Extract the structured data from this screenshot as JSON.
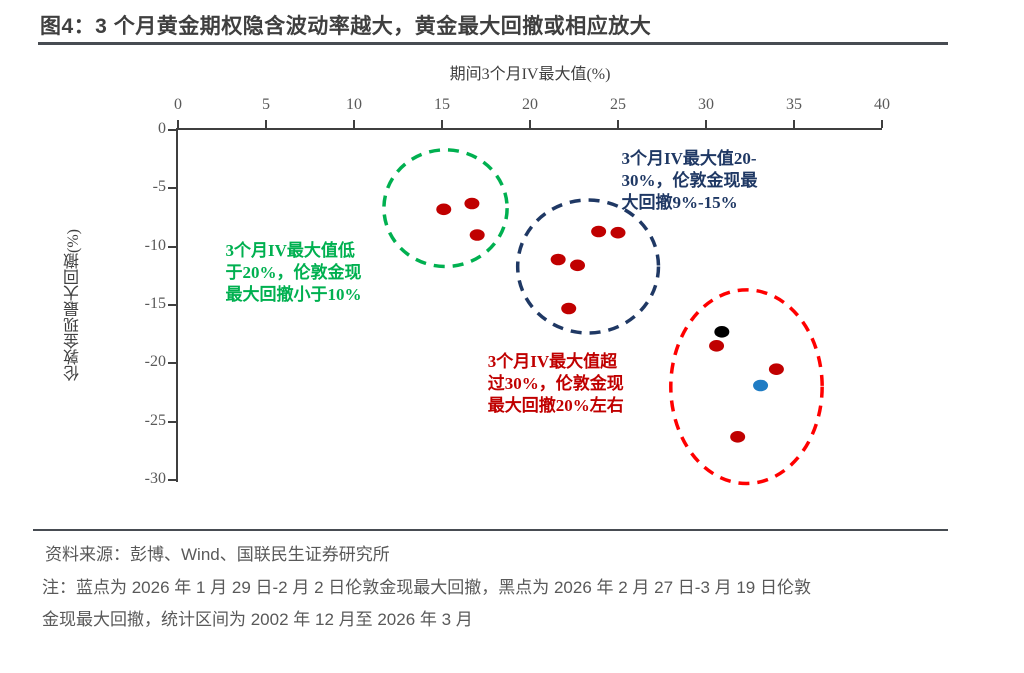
{
  "title": "图4：3 个月黄金期权隐含波动率越大，黄金最大回撤或相应放大",
  "chart_data": {
    "type": "scatter",
    "title": "图4：3 个月黄金期权隐含波动率越大，黄金最大回撤或相应放大",
    "xlabel": "期间3个月IV最大值(%)",
    "ylabel": "伦敦金现最大回撤(%)",
    "xlim": [
      0,
      40
    ],
    "ylim": [
      -30,
      0
    ],
    "x_ticks": [
      0,
      5,
      10,
      15,
      20,
      25,
      30,
      35,
      40
    ],
    "y_ticks": [
      0,
      -5,
      -10,
      -15,
      -20,
      -25,
      -30
    ],
    "grid": false,
    "legend": "none",
    "series": [
      {
        "name": "历史区间红点",
        "color": "#c00000",
        "points": [
          [
            15.1,
            -6.8
          ],
          [
            16.7,
            -6.3
          ],
          [
            17.0,
            -9.0
          ],
          [
            21.6,
            -11.1
          ],
          [
            22.7,
            -11.6
          ],
          [
            23.9,
            -8.7
          ],
          [
            25.0,
            -8.8
          ],
          [
            22.2,
            -15.3
          ],
          [
            30.6,
            -18.5
          ],
          [
            34.0,
            -20.5
          ],
          [
            31.8,
            -26.3
          ]
        ]
      },
      {
        "name": "2026年2月27日-3月19日黑点",
        "color": "#000000",
        "points": [
          [
            30.9,
            -17.3
          ]
        ]
      },
      {
        "name": "2026年1月29日-2月2日蓝点",
        "color": "#1f7cc4",
        "points": [
          [
            33.1,
            -21.9
          ]
        ]
      }
    ],
    "ellipses": [
      {
        "name": "group-iv-below-20",
        "color": "#00b050",
        "cx": 15.2,
        "cy": -6.7,
        "rx": 3.5,
        "ry": 5.0
      },
      {
        "name": "group-iv-20-30",
        "color": "#1f3864",
        "cx": 23.3,
        "cy": -11.7,
        "rx": 4.0,
        "ry": 5.7
      },
      {
        "name": "group-iv-above-30",
        "color": "#ff0000",
        "cx": 32.3,
        "cy": -22.0,
        "rx": 4.3,
        "ry": 8.3
      }
    ],
    "annotations": [
      {
        "name": "annotation-green",
        "color": "#00b050",
        "x": 2.7,
        "y": -9.4,
        "lines": [
          "3个月IV最大值低",
          "于20%，伦敦金现",
          "最大回撤小于10%"
        ]
      },
      {
        "name": "annotation-navy",
        "color": "#1f3864",
        "x": 25.2,
        "y": -1.5,
        "lines": [
          "3个月IV最大值20-",
          "30%，伦敦金现最",
          "大回撤9%-15%"
        ]
      },
      {
        "name": "annotation-red",
        "color": "#c00000",
        "x": 17.6,
        "y": -18.9,
        "lines": [
          "3个月IV最大值超",
          "过30%，伦敦金现",
          "最大回撤20%左右"
        ]
      }
    ]
  },
  "footer": {
    "source": "资料来源：彭博、Wind、国联民生证券研究所",
    "note_line1": "注：蓝点为 2026 年 1 月 29 日-2 月 2 日伦敦金现最大回撤，黑点为 2026 年 2 月 27 日-3 月 19 日伦敦",
    "note_line2": "金现最大回撤，统计区间为 2002 年 12 月至 2026 年 3 月"
  }
}
